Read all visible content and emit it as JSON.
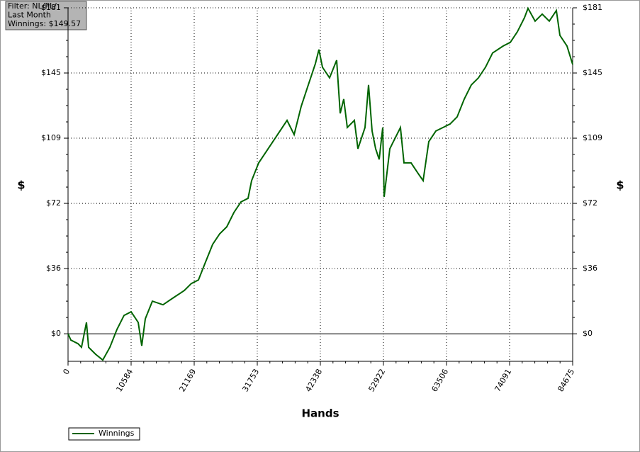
{
  "chart_data": {
    "type": "line",
    "annotation": [
      "Filter: NL/PL/",
      "Last Month",
      "Winnings: $149.57"
    ],
    "x_label": "Hands",
    "y_label": "$",
    "x": [
      0,
      476,
      1665,
      2260,
      3092,
      3449,
      4638,
      5827,
      7017,
      8206,
      9395,
      10585,
      11774,
      12369,
      12963,
      14153,
      15937,
      17721,
      19505,
      20694,
      21883,
      23072,
      24261,
      25450,
      26640,
      27829,
      29019,
      30208,
      30803,
      31992,
      33181,
      34371,
      35560,
      36749,
      37939,
      39128,
      40317,
      41506,
      42101,
      42696,
      43885,
      45074,
      45669,
      46264,
      46858,
      48048,
      48642,
      49831,
      50426,
      51021,
      51615,
      52210,
      52805,
      53043,
      53994,
      54589,
      55778,
      56373,
      57562,
      58752,
      59584,
      60536,
      61725,
      62914,
      64103,
      65293,
      66482,
      67671,
      68861,
      70050,
      71239,
      73023,
      74212,
      75402,
      76591,
      77186,
      78375,
      79564,
      80753,
      81943,
      82537,
      83727,
      84675
    ],
    "series": [
      {
        "name": "Winnings",
        "color": "#006400",
        "values": [
          0,
          -3.5,
          -5.5,
          -7.5,
          6.3,
          -7.5,
          -11.4,
          -14.6,
          -7.5,
          2.4,
          10.2,
          12.2,
          6.3,
          -6.7,
          8.3,
          18.1,
          16.1,
          20.1,
          24.0,
          27.9,
          29.9,
          39.8,
          49.6,
          55.5,
          59.4,
          67.3,
          73.2,
          75.2,
          85.0,
          94.9,
          100.8,
          106.7,
          112.6,
          118.5,
          110.6,
          126.3,
          138.2,
          150.0,
          157.8,
          148.0,
          142.1,
          151.9,
          122.4,
          130.3,
          114.5,
          118.5,
          102.7,
          114.5,
          138.2,
          112.6,
          102.7,
          96.8,
          114.5,
          76.0,
          102.7,
          106.7,
          114.5,
          94.9,
          94.9,
          89.0,
          85.0,
          106.7,
          112.6,
          114.5,
          116.5,
          120.4,
          130.3,
          138.2,
          142.1,
          148.0,
          155.9,
          159.8,
          161.8,
          167.7,
          175.5,
          180.7,
          173.6,
          177.5,
          173.6,
          179.5,
          165.7,
          159.8,
          149.57
        ]
      }
    ],
    "xlim": [
      0,
      84675
    ],
    "xticks": [
      0,
      10584,
      21169,
      31753,
      42338,
      52922,
      63506,
      74091,
      84675
    ],
    "ylim": [
      -15.3,
      181
    ],
    "yticks": [
      {
        "value": 0,
        "label": "$0"
      },
      {
        "value": 36.2,
        "label": "$36"
      },
      {
        "value": 72.4,
        "label": "$72"
      },
      {
        "value": 108.6,
        "label": "$109"
      },
      {
        "value": 144.8,
        "label": "$145"
      },
      {
        "value": 181,
        "label": "$181"
      }
    ],
    "grid": true
  }
}
